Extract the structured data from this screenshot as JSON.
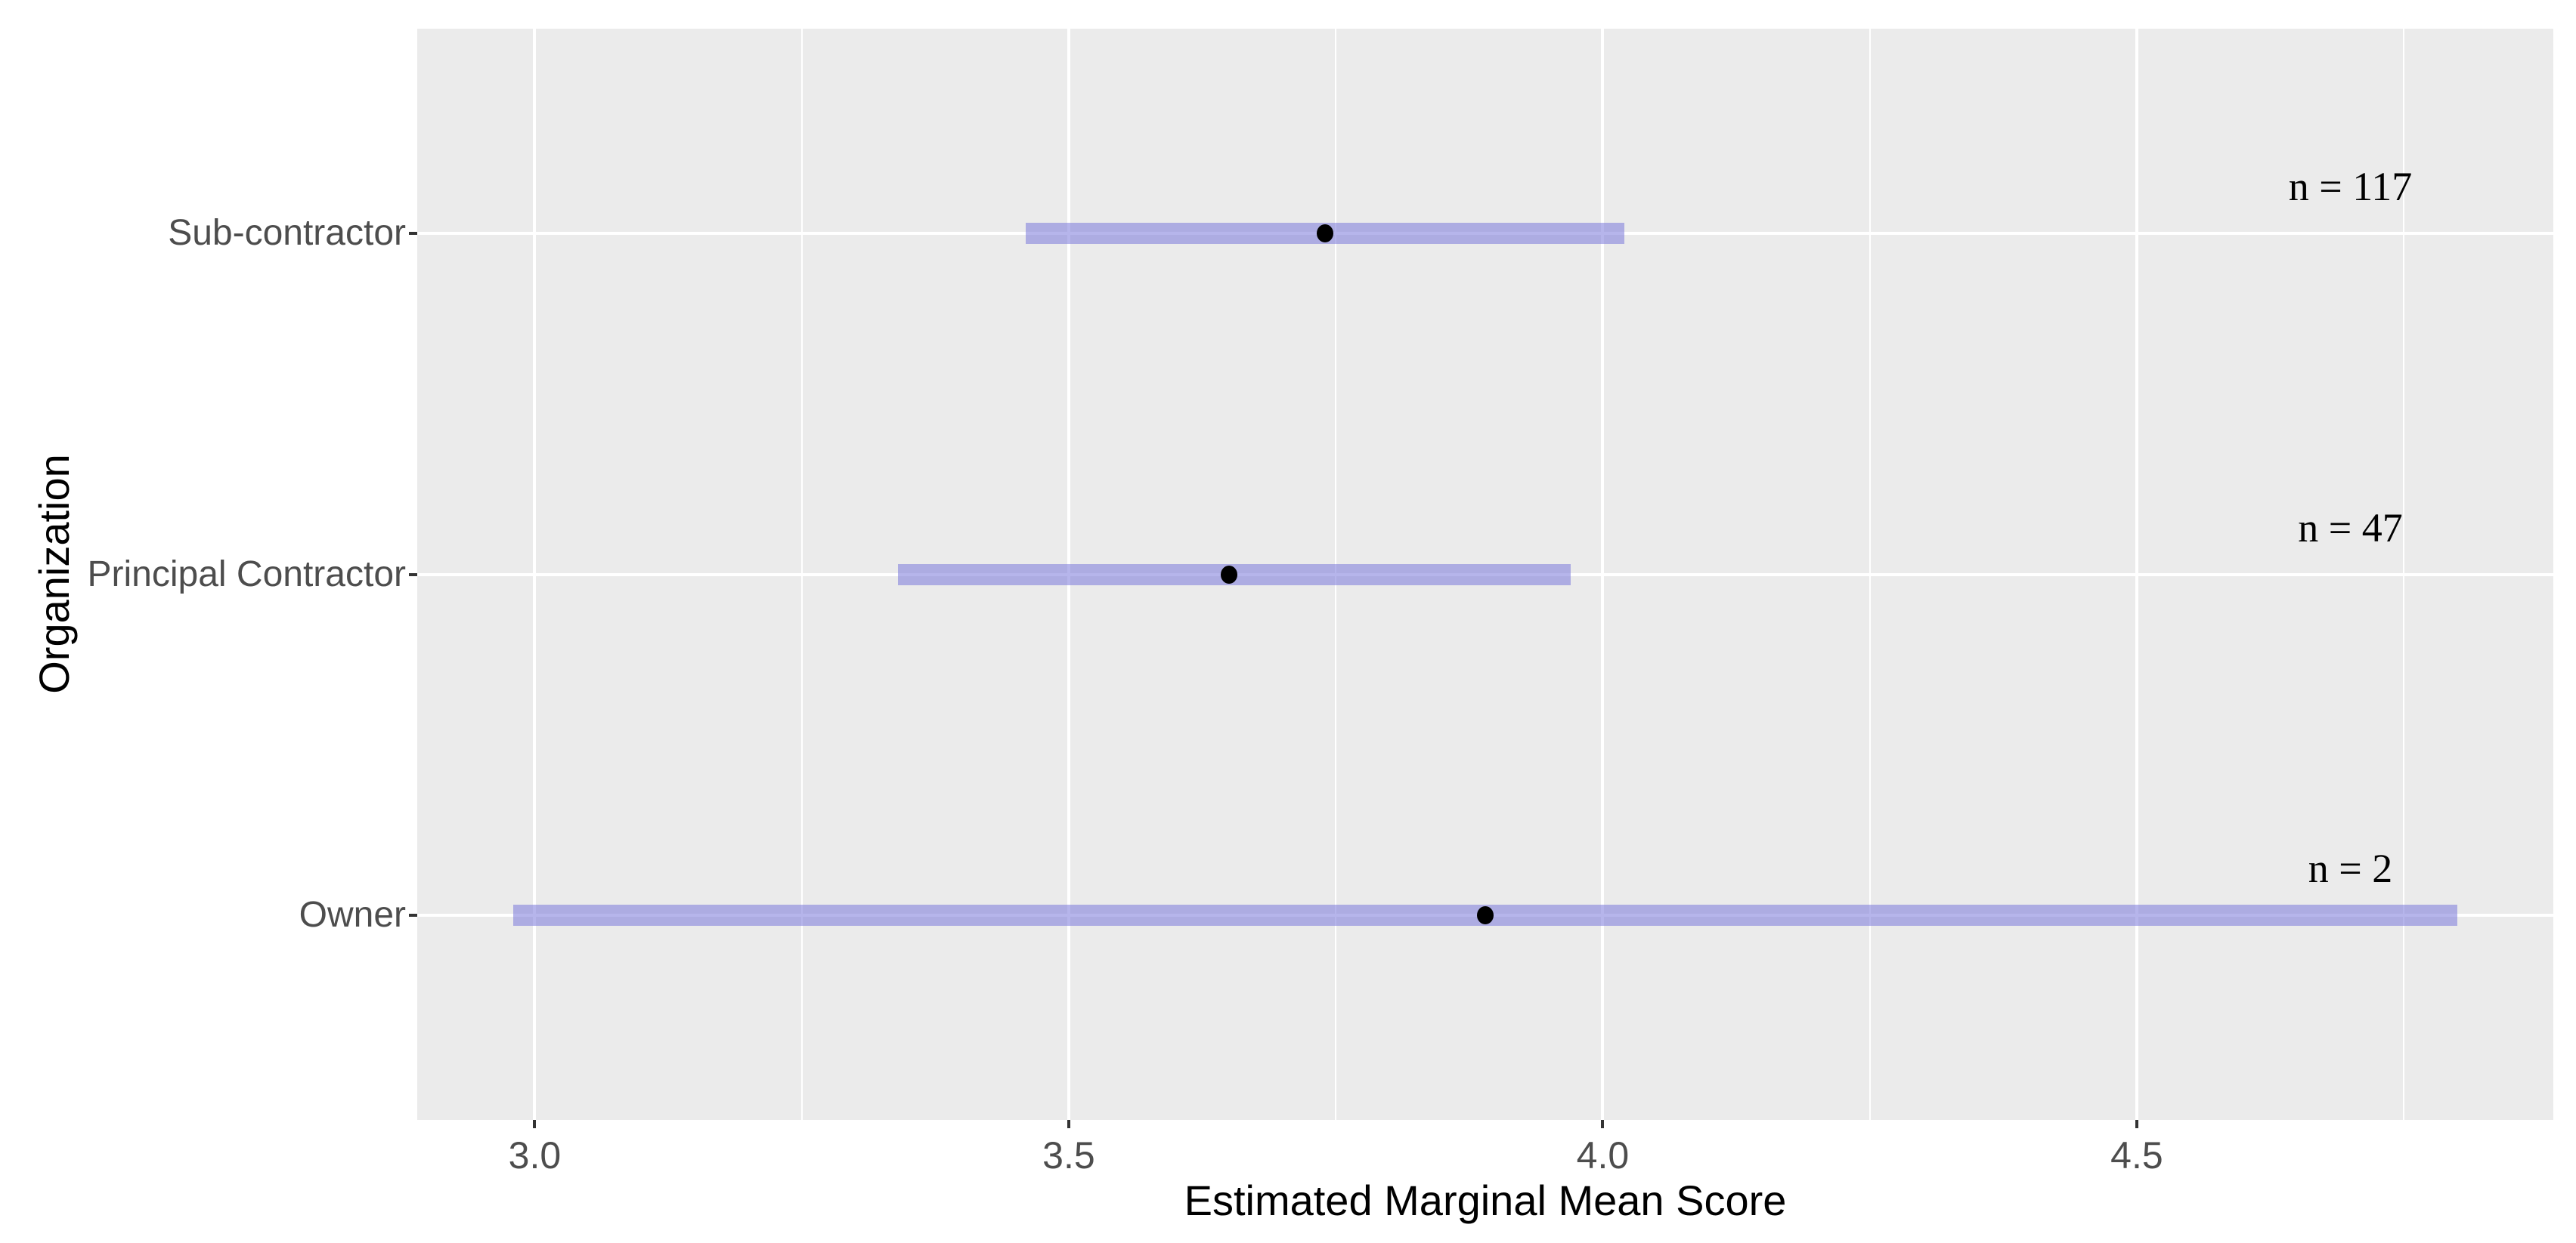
{
  "chart_data": {
    "type": "bar",
    "subtype": "horizontal-confidence-interval-plot",
    "title": "",
    "xlabel": "Estimated Marginal Mean Score",
    "ylabel": "Organization",
    "categories": [
      "Sub-contractor",
      "Principal Contractor",
      "Owner"
    ],
    "series": [
      {
        "name": "estimated_marginal_mean",
        "values": [
          3.74,
          3.65,
          3.89
        ]
      },
      {
        "name": "ci_lower",
        "values": [
          3.46,
          3.34,
          2.98
        ]
      },
      {
        "name": "ci_upper",
        "values": [
          4.02,
          3.97,
          4.8
        ]
      },
      {
        "name": "sample_size_n",
        "values": [
          117,
          47,
          2
        ]
      }
    ],
    "annotations": [
      {
        "text": "n = 117",
        "x": 4.7,
        "row": 0
      },
      {
        "text": "n = 47",
        "x": 4.7,
        "row": 1
      },
      {
        "text": "n = 2",
        "x": 4.7,
        "row": 2
      }
    ],
    "xlim": [
      2.89,
      4.89
    ],
    "x_major_ticks": {
      "values": [
        3.0,
        3.5,
        4.0,
        4.5
      ],
      "labels": [
        "3.0",
        "3.5",
        "4.0",
        "4.5"
      ]
    },
    "x_minor_gridlines": [
      3.25,
      3.75,
      4.25,
      4.75
    ],
    "grid": "white major gridlines (vertical at ticks, horizontal at categories), white minor vertical gridlines",
    "legend": false
  },
  "style": {
    "panel_background": "#ebebeb",
    "grid_color": "#ffffff",
    "interval_fill": "rgba(122,120,219,0.55)",
    "interval_fill_flat": "#acabe2",
    "point_color": "#000000",
    "tick_label_color": "#4d4d4d",
    "axis_title_color": "#000000",
    "tick_mark_color": "#333333"
  }
}
